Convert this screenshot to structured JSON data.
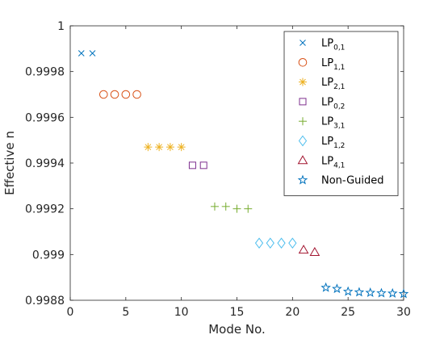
{
  "chart_data": {
    "type": "scatter",
    "xlabel": "Mode No.",
    "ylabel": "Effective n",
    "xlim": [
      0,
      30
    ],
    "ylim": [
      0.9988,
      1
    ],
    "xticks": [
      "0",
      "5",
      "10",
      "15",
      "20",
      "25",
      "30"
    ],
    "yticks": [
      "0.9988",
      "0.999",
      "0.9992",
      "0.9994",
      "0.9996",
      "0.9998",
      "1"
    ],
    "grid": false,
    "legend_position": "top-right",
    "series": [
      {
        "name": "LP",
        "subscript": "0,1",
        "marker": "x",
        "color": "#0072bd",
        "x": [
          1,
          2
        ],
        "y": [
          0.99988,
          0.99988
        ]
      },
      {
        "name": "LP",
        "subscript": "1,1",
        "marker": "circle",
        "color": "#d95319",
        "x": [
          3,
          4,
          5,
          6
        ],
        "y": [
          0.9997,
          0.9997,
          0.9997,
          0.9997
        ]
      },
      {
        "name": "LP",
        "subscript": "2,1",
        "marker": "asterisk",
        "color": "#edb120",
        "x": [
          7,
          8,
          9,
          10
        ],
        "y": [
          0.99947,
          0.99947,
          0.99947,
          0.99947
        ]
      },
      {
        "name": "LP",
        "subscript": "0,2",
        "marker": "square",
        "color": "#7e2f8e",
        "x": [
          11,
          12
        ],
        "y": [
          0.99939,
          0.99939
        ]
      },
      {
        "name": "LP",
        "subscript": "3,1",
        "marker": "plus",
        "color": "#77ac30",
        "x": [
          13,
          14,
          15,
          16
        ],
        "y": [
          0.99921,
          0.99921,
          0.9992,
          0.9992
        ]
      },
      {
        "name": "LP",
        "subscript": "1,2",
        "marker": "diamond",
        "color": "#4dbeee",
        "x": [
          17,
          18,
          19,
          20
        ],
        "y": [
          0.99905,
          0.99905,
          0.99905,
          0.99905
        ]
      },
      {
        "name": "LP",
        "subscript": "4,1",
        "marker": "triangle",
        "color": "#a2142f",
        "x": [
          21,
          22
        ],
        "y": [
          0.99902,
          0.99901
        ]
      },
      {
        "name": "Non-Guided",
        "subscript": "",
        "marker": "star",
        "color": "#0072bd",
        "x": [
          23,
          24,
          25,
          26,
          27,
          28,
          29,
          30
        ],
        "y": [
          0.998855,
          0.99885,
          0.998838,
          0.998835,
          0.998833,
          0.998831,
          0.99883,
          0.998828
        ]
      }
    ]
  }
}
